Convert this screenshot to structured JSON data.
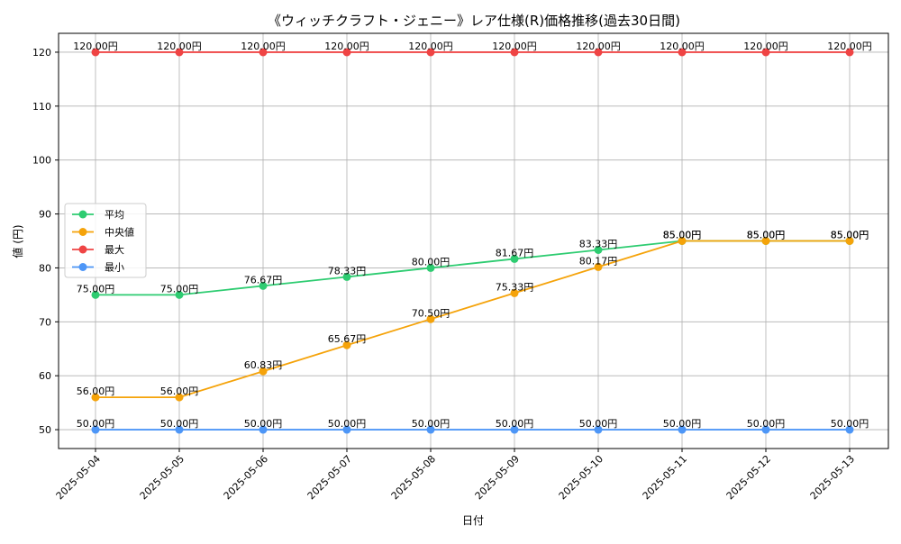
{
  "chart_data": {
    "type": "line",
    "title": "《ウィッチクラフト・ジェニー》レア仕様(R)価格推移(過去30日間)",
    "xlabel": "日付",
    "ylabel": "値 (円)",
    "categories": [
      "2025-05-04",
      "2025-05-05",
      "2025-05-06",
      "2025-05-07",
      "2025-05-08",
      "2025-05-09",
      "2025-05-10",
      "2025-05-11",
      "2025-05-12",
      "2025-05-13"
    ],
    "yticks": [
      50,
      60,
      70,
      80,
      90,
      100,
      110,
      120
    ],
    "ylim": [
      46.5,
      123.5
    ],
    "grid": true,
    "legend_position": "center-left",
    "value_suffix": "円",
    "series": [
      {
        "name": "平均",
        "color": "#2ecc71",
        "values": [
          75.0,
          75.0,
          76.67,
          78.33,
          80.0,
          81.67,
          83.33,
          85.0,
          85.0,
          85.0
        ]
      },
      {
        "name": "中央値",
        "color": "#f5a30a",
        "values": [
          56.0,
          56.0,
          60.83,
          65.67,
          70.5,
          75.33,
          80.17,
          85.0,
          85.0,
          85.0
        ]
      },
      {
        "name": "最大",
        "color": "#ef4444",
        "values": [
          120.0,
          120.0,
          120.0,
          120.0,
          120.0,
          120.0,
          120.0,
          120.0,
          120.0,
          120.0
        ]
      },
      {
        "name": "最小",
        "color": "#4d96f7",
        "values": [
          50.0,
          50.0,
          50.0,
          50.0,
          50.0,
          50.0,
          50.0,
          50.0,
          50.0,
          50.0
        ]
      }
    ]
  }
}
